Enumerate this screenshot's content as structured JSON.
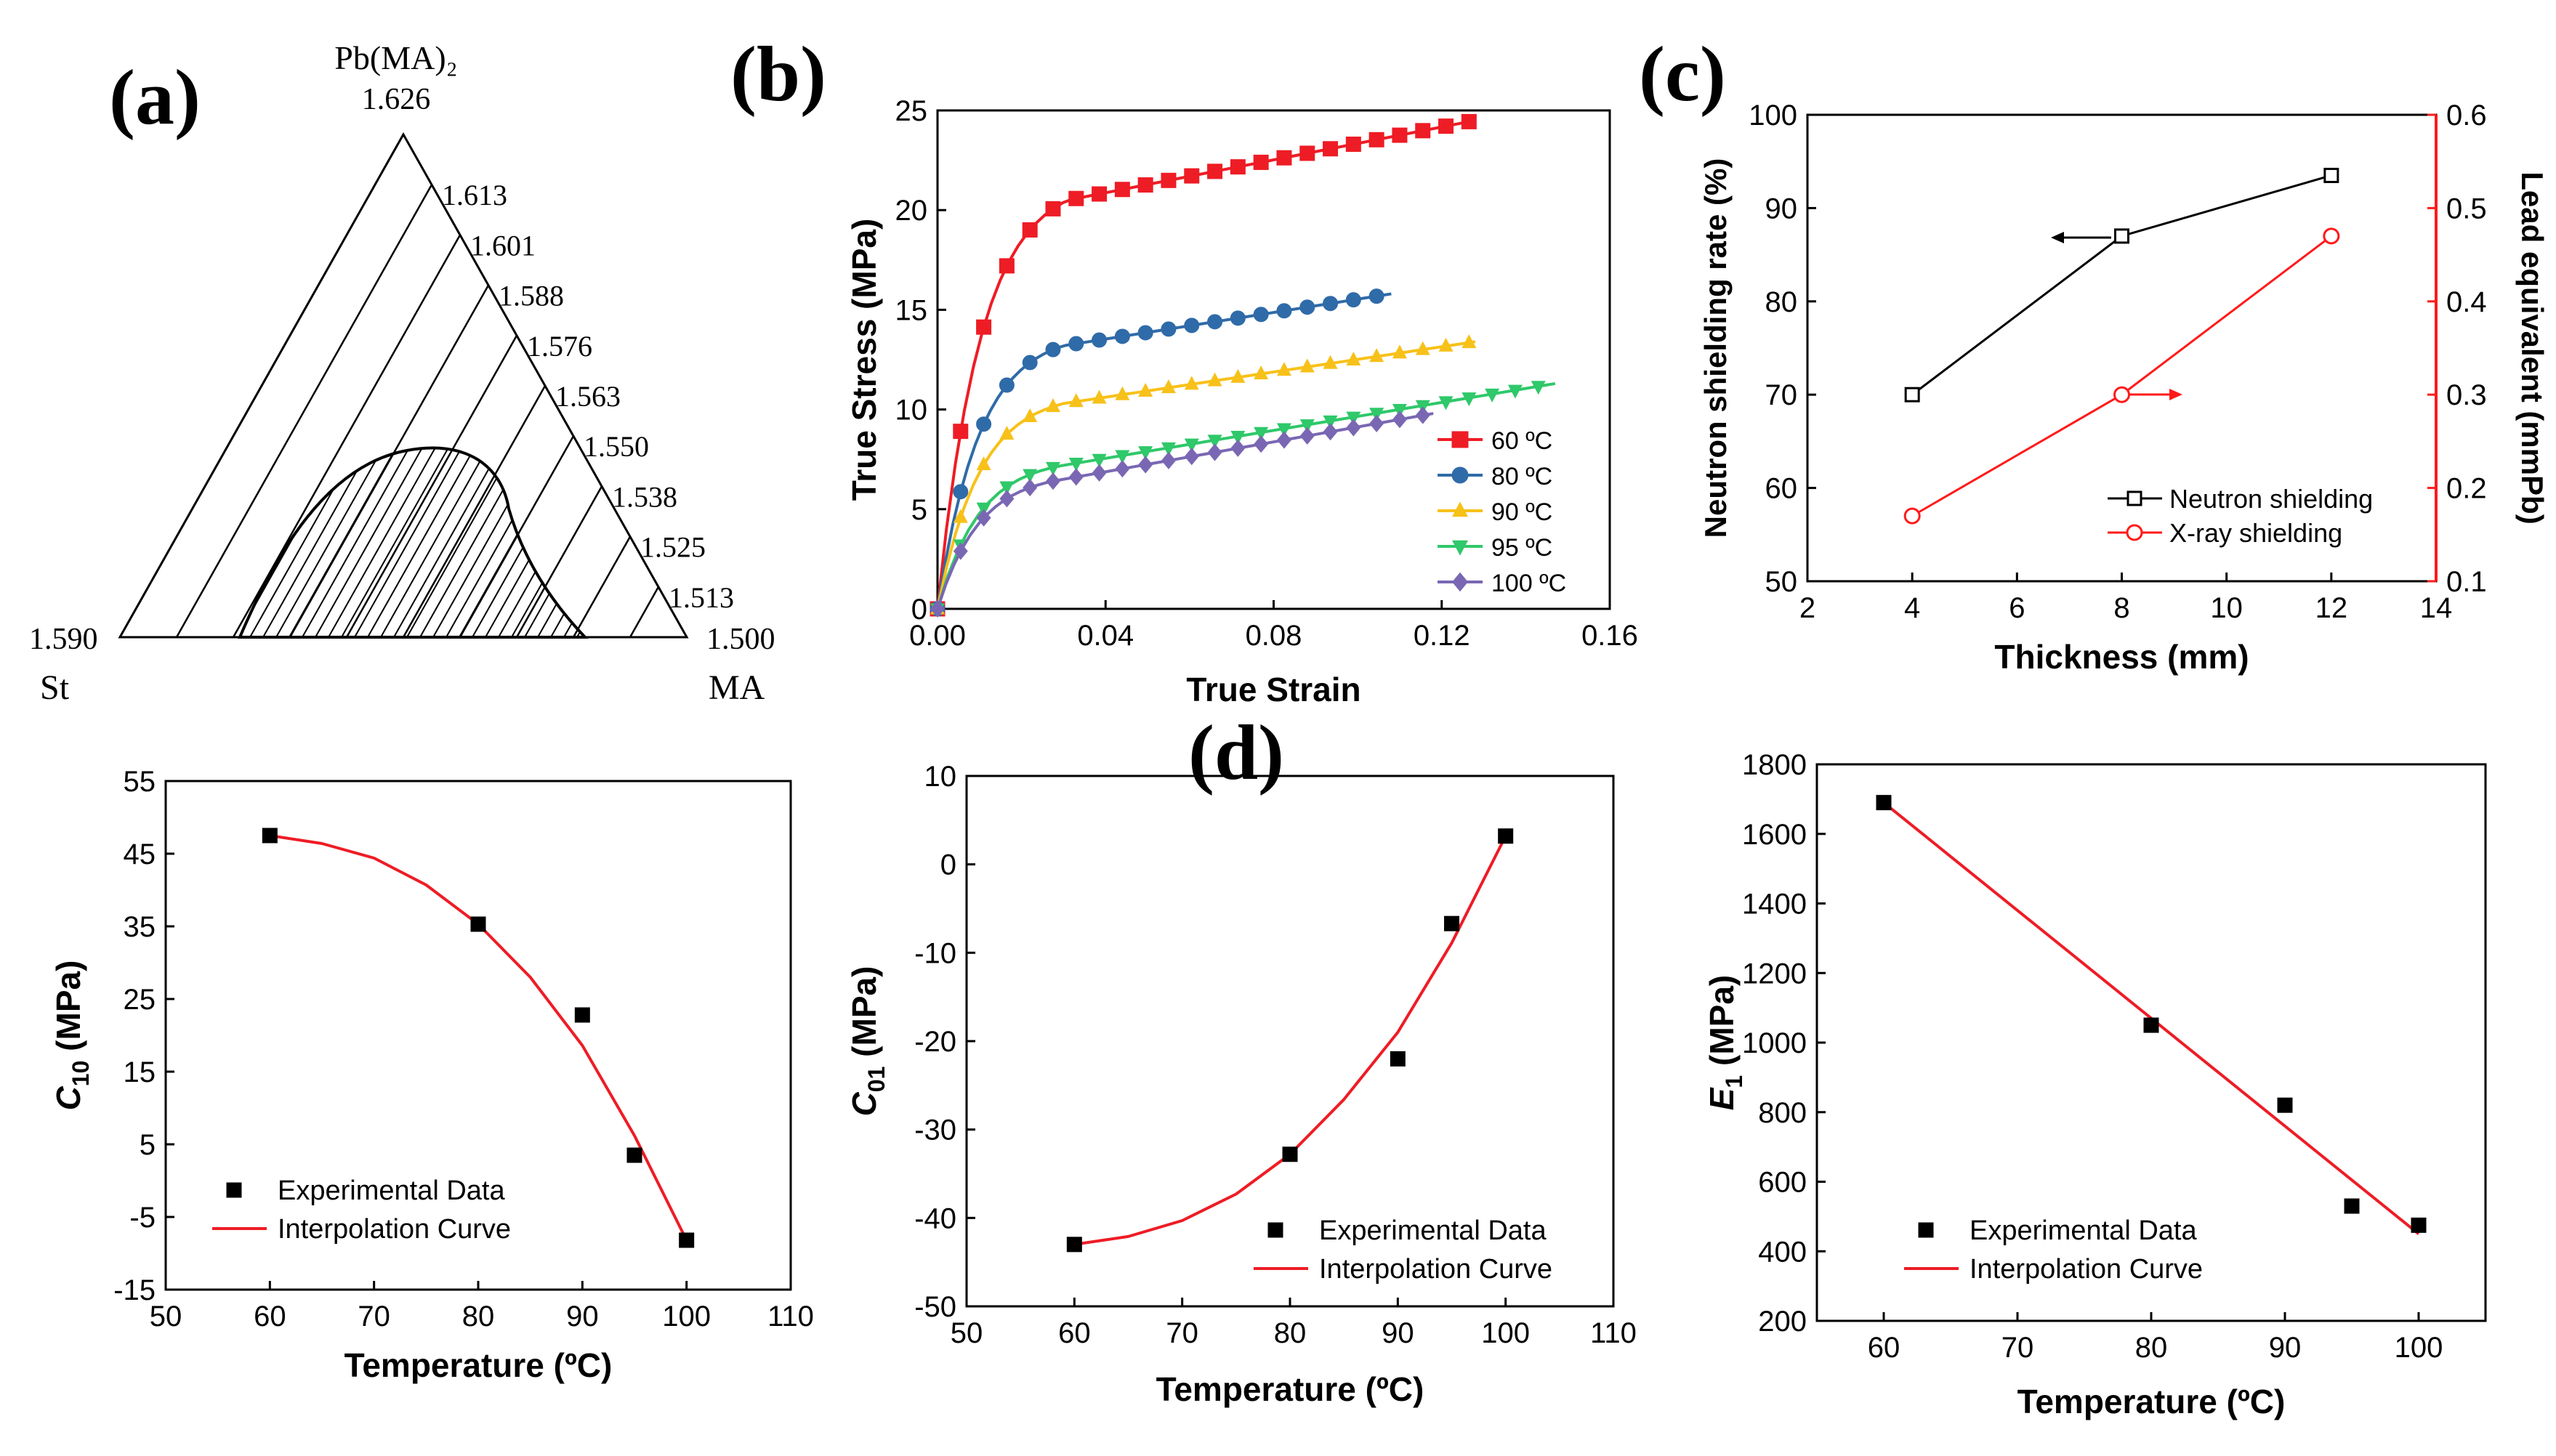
{
  "colors": {
    "red": "#ee1c25",
    "blue": "#2f6ba8",
    "yellow": "#f7c11a",
    "green": "#2fc86a",
    "purple": "#7a67b3",
    "black": "#000000",
    "xray": "#ff1a1a"
  },
  "labels": {
    "a": "(a)",
    "b": "(b)",
    "c": "(c)",
    "d": "(d)"
  },
  "chart_data": [
    {
      "id": "a",
      "type": "ternary",
      "vertex_top": "Pb(MA)₂",
      "vertex_top_value": "1.626",
      "vertex_left": "St",
      "vertex_left_value": "1.590",
      "vertex_right": "MA",
      "vertex_right_value": "1.500",
      "contour_labels": [
        "1.613",
        "1.601",
        "1.588",
        "1.576",
        "1.563",
        "1.550",
        "1.538",
        "1.525",
        "1.513"
      ]
    },
    {
      "id": "b",
      "type": "line",
      "xlabel": "True Strain",
      "ylabel": "True Stress (MPa)",
      "xlim": [
        0,
        0.16
      ],
      "ylim": [
        0,
        25
      ],
      "xticks": [
        "0.00",
        "0.04",
        "0.08",
        "0.12",
        "0.16"
      ],
      "yticks": [
        "0",
        "5",
        "10",
        "15",
        "20",
        "25"
      ],
      "series": [
        {
          "name": "60 ºC",
          "marker": "square",
          "color": "#ee1c25",
          "sigma_max": 24.5,
          "eps_max": 0.128,
          "s0": 20.5,
          "k0": 8.5,
          "eps_c": 0.031
        },
        {
          "name": "80 ºC",
          "marker": "circle",
          "color": "#2f6ba8",
          "sigma_max": 15.8,
          "eps_max": 0.108,
          "s0": 13.2,
          "k0": 8.5,
          "eps_c": 0.03
        },
        {
          "name": "90 ºC",
          "marker": "triangle-up",
          "color": "#f7c11a",
          "sigma_max": 13.4,
          "eps_max": 0.128,
          "s0": 10.3,
          "k0": 6.2,
          "eps_c": 0.03
        },
        {
          "name": "95 ºC",
          "marker": "triangle-down",
          "color": "#2fc86a",
          "sigma_max": 11.3,
          "eps_max": 0.147,
          "s0": 7.2,
          "k0": 6.5,
          "eps_c": 0.03
        },
        {
          "name": "100 ºC",
          "marker": "diamond",
          "color": "#7a67b3",
          "sigma_max": 9.8,
          "eps_max": 0.118,
          "s0": 6.5,
          "k0": 5.0,
          "eps_c": 0.03
        }
      ]
    },
    {
      "id": "c",
      "type": "line-dual-axis",
      "xlabel": "Thickness (mm)",
      "ylabel_left": "Neutron shielding rate (%)",
      "ylabel_right": "Lead equivalent (mmPb)",
      "xlim": [
        2,
        14
      ],
      "ylim_left": [
        50,
        100
      ],
      "ylim_right": [
        0.1,
        0.6
      ],
      "xticks": [
        "2",
        "4",
        "6",
        "8",
        "10",
        "12",
        "14"
      ],
      "yticks_left": [
        "50",
        "60",
        "70",
        "80",
        "90",
        "100"
      ],
      "yticks_right": [
        "0.1",
        "0.2",
        "0.3",
        "0.4",
        "0.5",
        "0.6"
      ],
      "series": [
        {
          "name": "Neutron shielding",
          "axis": "left",
          "x": [
            4,
            8,
            12
          ],
          "y": [
            70,
            87,
            93.5
          ]
        },
        {
          "name": "X-ray shielding",
          "axis": "right",
          "x": [
            4,
            8,
            12
          ],
          "y": [
            0.17,
            0.3,
            0.47
          ]
        }
      ]
    },
    {
      "id": "d1",
      "type": "scatter+line",
      "xlabel": "Temperature (ºC)",
      "ylabel": "C10 (MPa)",
      "ylabel_main": "C",
      "ylabel_sub": "10",
      "ylabel_unit": " (MPa)",
      "xlim": [
        50,
        110
      ],
      "ylim": [
        -15,
        55
      ],
      "xticks": [
        "50",
        "60",
        "70",
        "80",
        "90",
        "100",
        "110"
      ],
      "yticks": [
        "-15",
        "-5",
        "5",
        "15",
        "25",
        "35",
        "45",
        "55"
      ],
      "experimental": {
        "x": [
          60,
          80,
          90,
          95,
          100
        ],
        "y": [
          47.5,
          35.3,
          22.8,
          3.5,
          -8.2
        ]
      },
      "fit": {
        "x": [
          60,
          65,
          70,
          75,
          80,
          85,
          90,
          95,
          100
        ],
        "y": [
          47.5,
          46.4,
          44.4,
          40.7,
          35.3,
          28.0,
          18.6,
          6.2,
          -8.2
        ]
      },
      "legend": [
        "Experimental Data",
        "Interpolation Curve"
      ]
    },
    {
      "id": "d2",
      "type": "scatter+line",
      "xlabel": "Temperature (ºC)",
      "ylabel": "C01 (MPa)",
      "ylabel_main": "C",
      "ylabel_sub": "01",
      "ylabel_unit": " (MPa)",
      "xlim": [
        50,
        110
      ],
      "ylim": [
        -50,
        10
      ],
      "xticks": [
        "50",
        "60",
        "70",
        "80",
        "90",
        "100",
        "110"
      ],
      "yticks": [
        "-50",
        "-40",
        "-30",
        "-20",
        "-10",
        "0",
        "10"
      ],
      "experimental": {
        "x": [
          60,
          80,
          90,
          95,
          100
        ],
        "y": [
          -43,
          -32.8,
          -22,
          -6.7,
          3.2
        ]
      },
      "fit": {
        "x": [
          60,
          65,
          70,
          75,
          80,
          85,
          90,
          95,
          100
        ],
        "y": [
          -43,
          -42.1,
          -40.3,
          -37.3,
          -32.8,
          -26.6,
          -19.0,
          -8.9,
          3.2
        ]
      },
      "legend": [
        "Experimental Data",
        "Interpolation Curve"
      ]
    },
    {
      "id": "d3",
      "type": "scatter+line",
      "xlabel": "Temperature (ºC)",
      "ylabel": "E1 (MPa)",
      "ylabel_main": "E",
      "ylabel_sub": "1",
      "ylabel_unit": " (MPa)",
      "xlim": [
        55,
        105
      ],
      "ylim": [
        200,
        1800
      ],
      "xticks": [
        "60",
        "70",
        "80",
        "90",
        "100"
      ],
      "yticks": [
        "200",
        "400",
        "600",
        "800",
        "1000",
        "1200",
        "1400",
        "1600",
        "1800"
      ],
      "experimental": {
        "x": [
          60,
          80,
          90,
          95,
          100
        ],
        "y": [
          1690,
          1050,
          820,
          530,
          475
        ]
      },
      "fit": {
        "x": [
          60,
          100
        ],
        "y": [
          1690,
          450
        ]
      },
      "legend": [
        "Experimental Data",
        "Interpolation Curve"
      ]
    }
  ]
}
